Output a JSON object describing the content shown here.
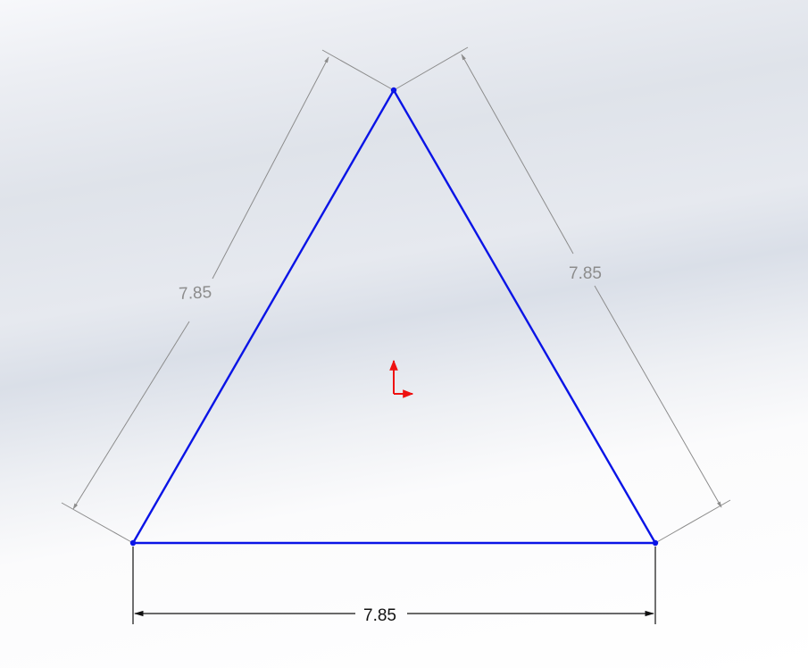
{
  "sketch": {
    "sides": [
      {
        "name": "left",
        "value": "7.85"
      },
      {
        "name": "right",
        "value": "7.85"
      },
      {
        "name": "bottom",
        "value": "7.85"
      }
    ],
    "colors": {
      "sketch_line": "#0a14e6",
      "dimension_inactive": "#8c8c8c",
      "dimension_active": "#111111",
      "origin": "#ee1111"
    },
    "origin_icon": "sketch-origin-icon"
  }
}
